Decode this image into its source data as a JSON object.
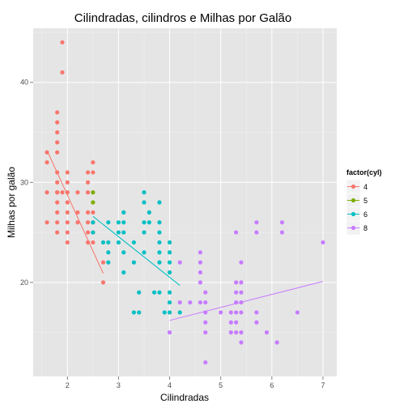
{
  "chart_data": {
    "type": "scatter",
    "title": "Cilindradas, cilindros e Milhas por Galão",
    "xlabel": "Cilindradas",
    "ylabel": "Milhas por galão",
    "xlim": [
      1.33,
      7.27
    ],
    "ylim": [
      10.6,
      45.4
    ],
    "x_ticks": [
      2,
      3,
      4,
      5,
      6,
      7
    ],
    "y_ticks": [
      20,
      30,
      40
    ],
    "grid": true,
    "legend": {
      "title": "factor(cyl)",
      "position": "right",
      "entries": [
        "4",
        "5",
        "6",
        "8"
      ]
    },
    "colors": {
      "4": "#F8766D",
      "5": "#7CAE00",
      "6": "#00BFC4",
      "8": "#C77CFF",
      "panel_bg": "#E5E5E5",
      "grid_major": "#FFFFFF",
      "grid_minor": "#F2F2F2"
    },
    "series": [
      {
        "name": "4",
        "points": [
          [
            1.6,
            33
          ],
          [
            1.6,
            32
          ],
          [
            1.6,
            29
          ],
          [
            1.6,
            26
          ],
          [
            1.8,
            29
          ],
          [
            1.8,
            26
          ],
          [
            1.8,
            25
          ],
          [
            1.8,
            29
          ],
          [
            1.8,
            34
          ],
          [
            1.8,
            35
          ],
          [
            1.8,
            36
          ],
          [
            1.8,
            37
          ],
          [
            1.8,
            33
          ],
          [
            1.8,
            31
          ],
          [
            1.8,
            28
          ],
          [
            1.8,
            27
          ],
          [
            1.8,
            30
          ],
          [
            1.9,
            44
          ],
          [
            1.9,
            41
          ],
          [
            1.9,
            29
          ],
          [
            2.0,
            31
          ],
          [
            2.0,
            30
          ],
          [
            2.0,
            28
          ],
          [
            2.0,
            29
          ],
          [
            2.0,
            26
          ],
          [
            2.0,
            27
          ],
          [
            2.0,
            24
          ],
          [
            2.0,
            25
          ],
          [
            2.2,
            29
          ],
          [
            2.2,
            27
          ],
          [
            2.2,
            26
          ],
          [
            2.4,
            31
          ],
          [
            2.4,
            30
          ],
          [
            2.4,
            29
          ],
          [
            2.4,
            27
          ],
          [
            2.4,
            26
          ],
          [
            2.4,
            25
          ],
          [
            2.4,
            24
          ],
          [
            2.5,
            32
          ],
          [
            2.5,
            31
          ],
          [
            2.5,
            27
          ],
          [
            2.5,
            26
          ],
          [
            2.5,
            25
          ],
          [
            2.5,
            24
          ],
          [
            2.7,
            22
          ],
          [
            2.7,
            20
          ]
        ]
      },
      {
        "name": "5",
        "points": [
          [
            2.5,
            29
          ],
          [
            2.5,
            28
          ]
        ]
      },
      {
        "name": "6",
        "points": [
          [
            2.5,
            26
          ],
          [
            2.5,
            25
          ],
          [
            2.7,
            24
          ],
          [
            2.8,
            26
          ],
          [
            2.8,
            24
          ],
          [
            2.8,
            23
          ],
          [
            2.8,
            22
          ],
          [
            3.0,
            26
          ],
          [
            3.0,
            25
          ],
          [
            3.0,
            24
          ],
          [
            3.1,
            27
          ],
          [
            3.1,
            26
          ],
          [
            3.1,
            25
          ],
          [
            3.1,
            23
          ],
          [
            3.1,
            21
          ],
          [
            3.3,
            24
          ],
          [
            3.3,
            22
          ],
          [
            3.3,
            17
          ],
          [
            3.4,
            19
          ],
          [
            3.4,
            17
          ],
          [
            3.5,
            29
          ],
          [
            3.5,
            28
          ],
          [
            3.5,
            26
          ],
          [
            3.5,
            25
          ],
          [
            3.5,
            23
          ],
          [
            3.6,
            27
          ],
          [
            3.6,
            26
          ],
          [
            3.7,
            19
          ],
          [
            3.8,
            28
          ],
          [
            3.8,
            26
          ],
          [
            3.8,
            25
          ],
          [
            3.8,
            24
          ],
          [
            3.8,
            23
          ],
          [
            3.8,
            22
          ],
          [
            3.8,
            19
          ],
          [
            3.9,
            17
          ],
          [
            4.0,
            24
          ],
          [
            4.0,
            23
          ],
          [
            4.0,
            22
          ],
          [
            4.0,
            21
          ],
          [
            4.0,
            19
          ],
          [
            4.0,
            18
          ],
          [
            4.0,
            17
          ],
          [
            4.2,
            17
          ]
        ]
      },
      {
        "name": "8",
        "points": [
          [
            4.0,
            15
          ],
          [
            4.2,
            22
          ],
          [
            4.2,
            18
          ],
          [
            4.4,
            18
          ],
          [
            4.6,
            23
          ],
          [
            4.6,
            22
          ],
          [
            4.6,
            21
          ],
          [
            4.6,
            20
          ],
          [
            4.6,
            18
          ],
          [
            4.7,
            19
          ],
          [
            4.7,
            18
          ],
          [
            4.7,
            17
          ],
          [
            4.7,
            16
          ],
          [
            4.7,
            15
          ],
          [
            4.7,
            12
          ],
          [
            5.0,
            17
          ],
          [
            5.2,
            17
          ],
          [
            5.2,
            16
          ],
          [
            5.2,
            15
          ],
          [
            5.3,
            25
          ],
          [
            5.3,
            20
          ],
          [
            5.3,
            19
          ],
          [
            5.3,
            18
          ],
          [
            5.3,
            17
          ],
          [
            5.3,
            16
          ],
          [
            5.3,
            15
          ],
          [
            5.4,
            22
          ],
          [
            5.4,
            20
          ],
          [
            5.4,
            19
          ],
          [
            5.4,
            18
          ],
          [
            5.4,
            17
          ],
          [
            5.4,
            15
          ],
          [
            5.4,
            14
          ],
          [
            5.7,
            26
          ],
          [
            5.7,
            25
          ],
          [
            5.7,
            17
          ],
          [
            5.7,
            16
          ],
          [
            5.9,
            15
          ],
          [
            6.1,
            14
          ],
          [
            6.2,
            26
          ],
          [
            6.2,
            25
          ],
          [
            6.5,
            17
          ],
          [
            7.0,
            24
          ]
        ]
      }
    ],
    "fits": [
      {
        "name": "4",
        "from": [
          1.6,
          33.2
        ],
        "to": [
          2.7,
          20.9
        ]
      },
      {
        "name": "6",
        "from": [
          2.5,
          26.6
        ],
        "to": [
          4.2,
          19.7
        ]
      },
      {
        "name": "8",
        "from": [
          4.0,
          16.2
        ],
        "to": [
          7.0,
          20.1
        ]
      }
    ]
  }
}
